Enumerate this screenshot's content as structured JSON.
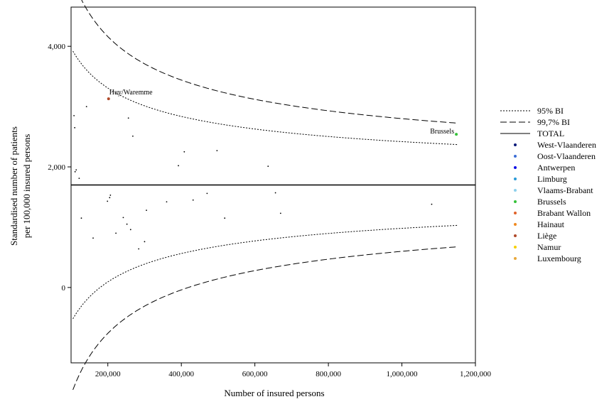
{
  "chart_data": {
    "type": "scatter",
    "title": "",
    "xlabel": "Number of insured persons",
    "ylabel_line1": "Standardised number of patients",
    "ylabel_line2": "per 100,000 insured persons",
    "xlim": [
      100000,
      1200000
    ],
    "ylim": [
      -1250,
      4650
    ],
    "x_ticks": [
      200000,
      400000,
      600000,
      800000,
      1000000,
      1200000
    ],
    "x_tick_labels": [
      "200,000",
      "400,000",
      "600,000",
      "800,000",
      "1,000,000",
      "1,200,000"
    ],
    "y_ticks": [
      0,
      2000,
      4000
    ],
    "y_tick_labels": [
      "0",
      "2,000",
      "4,000"
    ],
    "grid": false,
    "total_value": 1700,
    "limits": {
      "x_range": [
        105000,
        1150000
      ],
      "ci95_z": 1.96,
      "ci997_z": 3,
      "coef": 1160
    },
    "points": [
      {
        "x": 108000,
        "y": 2850,
        "region": "Other"
      },
      {
        "x": 110000,
        "y": 2650,
        "region": "Other"
      },
      {
        "x": 111000,
        "y": 1920,
        "region": "Other"
      },
      {
        "x": 114000,
        "y": 1950,
        "region": "Other"
      },
      {
        "x": 122000,
        "y": 1810,
        "region": "Other"
      },
      {
        "x": 128000,
        "y": 1150,
        "region": "Other"
      },
      {
        "x": 142000,
        "y": 3000,
        "region": "Other"
      },
      {
        "x": 160000,
        "y": 820,
        "region": "Other"
      },
      {
        "x": 199000,
        "y": 1430,
        "region": "Other"
      },
      {
        "x": 202000,
        "y": 3130,
        "region": "Liège",
        "label": "Huy/Waremme"
      },
      {
        "x": 205000,
        "y": 1490,
        "region": "Other"
      },
      {
        "x": 207000,
        "y": 1530,
        "region": "Other"
      },
      {
        "x": 222000,
        "y": 900,
        "region": "Other"
      },
      {
        "x": 242000,
        "y": 1160,
        "region": "Other"
      },
      {
        "x": 252000,
        "y": 1050,
        "region": "Other"
      },
      {
        "x": 256000,
        "y": 2810,
        "region": "Other"
      },
      {
        "x": 262000,
        "y": 960,
        "region": "Other"
      },
      {
        "x": 268000,
        "y": 2510,
        "region": "Other"
      },
      {
        "x": 284000,
        "y": 640,
        "region": "Other"
      },
      {
        "x": 300000,
        "y": 760,
        "region": "Other"
      },
      {
        "x": 305000,
        "y": 1280,
        "region": "Other"
      },
      {
        "x": 360000,
        "y": 1420,
        "region": "Other"
      },
      {
        "x": 392000,
        "y": 2020,
        "region": "Other"
      },
      {
        "x": 408000,
        "y": 2250,
        "region": "Other"
      },
      {
        "x": 432000,
        "y": 1450,
        "region": "Other"
      },
      {
        "x": 470000,
        "y": 1560,
        "region": "Other"
      },
      {
        "x": 497000,
        "y": 2270,
        "region": "Other"
      },
      {
        "x": 518000,
        "y": 1150,
        "region": "Other"
      },
      {
        "x": 636000,
        "y": 2010,
        "region": "Other"
      },
      {
        "x": 656000,
        "y": 1570,
        "region": "Other"
      },
      {
        "x": 670000,
        "y": 1230,
        "region": "Other"
      },
      {
        "x": 1081000,
        "y": 1380,
        "region": "Other"
      },
      {
        "x": 1148000,
        "y": 2540,
        "region": "Brussels",
        "label": "Brussels"
      }
    ],
    "legend": {
      "placement": "right",
      "lines": [
        {
          "name": "95% BI",
          "style": "dotted"
        },
        {
          "name": "99,7% BI",
          "style": "dashed"
        },
        {
          "name": "TOTAL",
          "style": "solid"
        }
      ],
      "regions": [
        {
          "name": "West-Vlaanderen",
          "color": "#0a1a7a"
        },
        {
          "name": "Oost-Vlaanderen",
          "color": "#3c6ed6"
        },
        {
          "name": "Antwerpen",
          "color": "#1010e6"
        },
        {
          "name": "Limburg",
          "color": "#2a9bd8"
        },
        {
          "name": "Vlaams-Brabant",
          "color": "#8fd0ec"
        },
        {
          "name": "Brussels",
          "color": "#36c23a"
        },
        {
          "name": "Brabant Wallon",
          "color": "#e0622a"
        },
        {
          "name": "Hainaut",
          "color": "#f08a20"
        },
        {
          "name": "Liège",
          "color": "#b04a2a"
        },
        {
          "name": "Namur",
          "color": "#f6d000"
        },
        {
          "name": "Luxembourg",
          "color": "#e8a83a"
        }
      ]
    }
  }
}
